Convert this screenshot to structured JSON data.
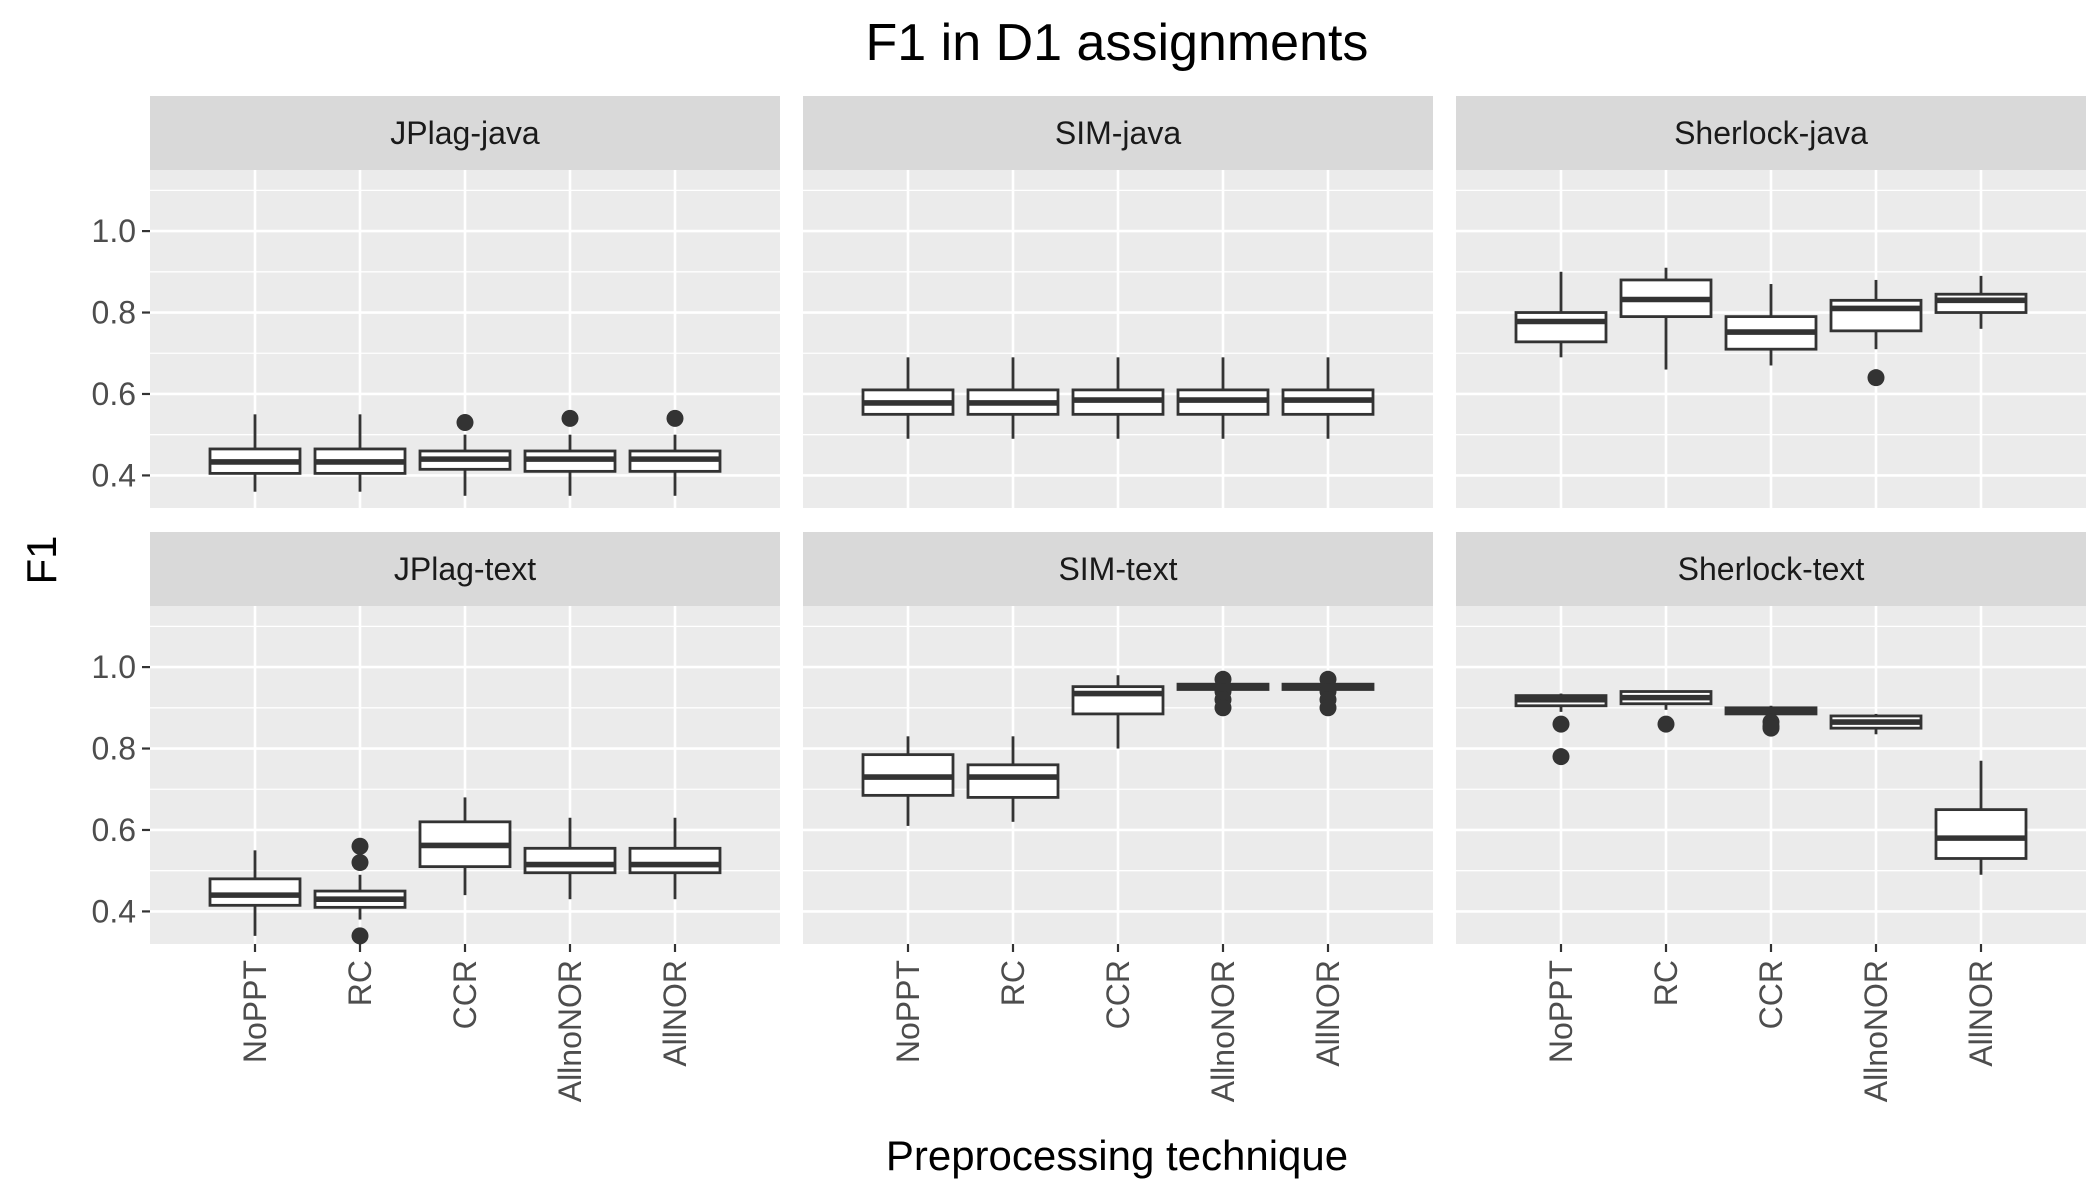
{
  "chart_data": {
    "type": "boxplot",
    "title": "F1 in D1 assignments",
    "xlabel": "Preprocessing technique",
    "ylabel": "F1",
    "categories": [
      "NoPPT",
      "RC",
      "CCR",
      "AllnoNOR",
      "AllNOR"
    ],
    "ylim": [
      0.32,
      1.15
    ],
    "yticks": [
      0.4,
      0.6,
      0.8,
      1.0
    ],
    "yticklabels": [
      "0.4",
      "0.6",
      "0.8",
      "1.0"
    ],
    "grid": true,
    "facet_layout": {
      "rows": 2,
      "cols": 3
    },
    "panels": [
      {
        "name": "JPlag-java",
        "boxes": [
          {
            "category": "NoPPT",
            "min": 0.36,
            "q1": 0.405,
            "median": 0.433,
            "q3": 0.465,
            "max": 0.55,
            "outliers": []
          },
          {
            "category": "RC",
            "min": 0.36,
            "q1": 0.405,
            "median": 0.433,
            "q3": 0.465,
            "max": 0.55,
            "outliers": []
          },
          {
            "category": "CCR",
            "min": 0.35,
            "q1": 0.415,
            "median": 0.44,
            "q3": 0.46,
            "max": 0.5,
            "outliers": [
              0.53
            ]
          },
          {
            "category": "AllnoNOR",
            "min": 0.35,
            "q1": 0.41,
            "median": 0.44,
            "q3": 0.46,
            "max": 0.5,
            "outliers": [
              0.54
            ]
          },
          {
            "category": "AllNOR",
            "min": 0.35,
            "q1": 0.41,
            "median": 0.44,
            "q3": 0.46,
            "max": 0.5,
            "outliers": [
              0.54
            ]
          }
        ]
      },
      {
        "name": "SIM-java",
        "boxes": [
          {
            "category": "NoPPT",
            "min": 0.49,
            "q1": 0.55,
            "median": 0.578,
            "q3": 0.61,
            "max": 0.69,
            "outliers": []
          },
          {
            "category": "RC",
            "min": 0.49,
            "q1": 0.55,
            "median": 0.578,
            "q3": 0.61,
            "max": 0.69,
            "outliers": []
          },
          {
            "category": "CCR",
            "min": 0.49,
            "q1": 0.55,
            "median": 0.585,
            "q3": 0.61,
            "max": 0.69,
            "outliers": []
          },
          {
            "category": "AllnoNOR",
            "min": 0.49,
            "q1": 0.55,
            "median": 0.585,
            "q3": 0.61,
            "max": 0.69,
            "outliers": []
          },
          {
            "category": "AllNOR",
            "min": 0.49,
            "q1": 0.55,
            "median": 0.585,
            "q3": 0.61,
            "max": 0.69,
            "outliers": []
          }
        ]
      },
      {
        "name": "Sherlock-java",
        "boxes": [
          {
            "category": "NoPPT",
            "min": 0.69,
            "q1": 0.728,
            "median": 0.778,
            "q3": 0.8,
            "max": 0.9,
            "outliers": []
          },
          {
            "category": "RC",
            "min": 0.66,
            "q1": 0.79,
            "median": 0.832,
            "q3": 0.88,
            "max": 0.91,
            "outliers": []
          },
          {
            "category": "CCR",
            "min": 0.67,
            "q1": 0.71,
            "median": 0.752,
            "q3": 0.79,
            "max": 0.87,
            "outliers": []
          },
          {
            "category": "AllnoNOR",
            "min": 0.71,
            "q1": 0.755,
            "median": 0.81,
            "q3": 0.83,
            "max": 0.88,
            "outliers": [
              0.64
            ]
          },
          {
            "category": "AllNOR",
            "min": 0.76,
            "q1": 0.8,
            "median": 0.83,
            "q3": 0.845,
            "max": 0.89,
            "outliers": []
          }
        ]
      },
      {
        "name": "JPlag-text",
        "boxes": [
          {
            "category": "NoPPT",
            "min": 0.34,
            "q1": 0.415,
            "median": 0.44,
            "q3": 0.48,
            "max": 0.55,
            "outliers": []
          },
          {
            "category": "RC",
            "min": 0.38,
            "q1": 0.41,
            "median": 0.43,
            "q3": 0.45,
            "max": 0.49,
            "outliers": [
              0.56,
              0.52,
              0.34
            ]
          },
          {
            "category": "CCR",
            "min": 0.44,
            "q1": 0.51,
            "median": 0.562,
            "q3": 0.62,
            "max": 0.68,
            "outliers": []
          },
          {
            "category": "AllnoNOR",
            "min": 0.43,
            "q1": 0.495,
            "median": 0.515,
            "q3": 0.555,
            "max": 0.63,
            "outliers": []
          },
          {
            "category": "AllNOR",
            "min": 0.43,
            "q1": 0.495,
            "median": 0.515,
            "q3": 0.555,
            "max": 0.63,
            "outliers": []
          }
        ]
      },
      {
        "name": "SIM-text",
        "boxes": [
          {
            "category": "NoPPT",
            "min": 0.61,
            "q1": 0.685,
            "median": 0.73,
            "q3": 0.785,
            "max": 0.83,
            "outliers": []
          },
          {
            "category": "RC",
            "min": 0.62,
            "q1": 0.68,
            "median": 0.73,
            "q3": 0.76,
            "max": 0.83,
            "outliers": []
          },
          {
            "category": "CCR",
            "min": 0.8,
            "q1": 0.885,
            "median": 0.935,
            "q3": 0.952,
            "max": 0.98,
            "outliers": []
          },
          {
            "category": "AllnoNOR",
            "min": 0.945,
            "q1": 0.945,
            "median": 0.952,
            "q3": 0.958,
            "max": 0.965,
            "outliers": [
              0.97,
              0.94,
              0.92,
              0.9
            ]
          },
          {
            "category": "AllNOR",
            "min": 0.945,
            "q1": 0.945,
            "median": 0.952,
            "q3": 0.958,
            "max": 0.965,
            "outliers": [
              0.97,
              0.94,
              0.92,
              0.9
            ]
          }
        ]
      },
      {
        "name": "Sherlock-text",
        "boxes": [
          {
            "category": "NoPPT",
            "min": 0.89,
            "q1": 0.905,
            "median": 0.92,
            "q3": 0.93,
            "max": 0.935,
            "outliers": [
              0.86,
              0.78
            ]
          },
          {
            "category": "RC",
            "min": 0.895,
            "q1": 0.91,
            "median": 0.925,
            "q3": 0.94,
            "max": 0.94,
            "outliers": [
              0.86
            ]
          },
          {
            "category": "CCR",
            "min": 0.88,
            "q1": 0.885,
            "median": 0.893,
            "q3": 0.9,
            "max": 0.905,
            "outliers": [
              0.865,
              0.855,
              0.85
            ]
          },
          {
            "category": "AllnoNOR",
            "min": 0.835,
            "q1": 0.85,
            "median": 0.865,
            "q3": 0.88,
            "max": 0.885,
            "outliers": []
          },
          {
            "category": "AllNOR",
            "min": 0.49,
            "q1": 0.53,
            "median": 0.58,
            "q3": 0.65,
            "max": 0.77,
            "outliers": []
          }
        ]
      }
    ]
  }
}
